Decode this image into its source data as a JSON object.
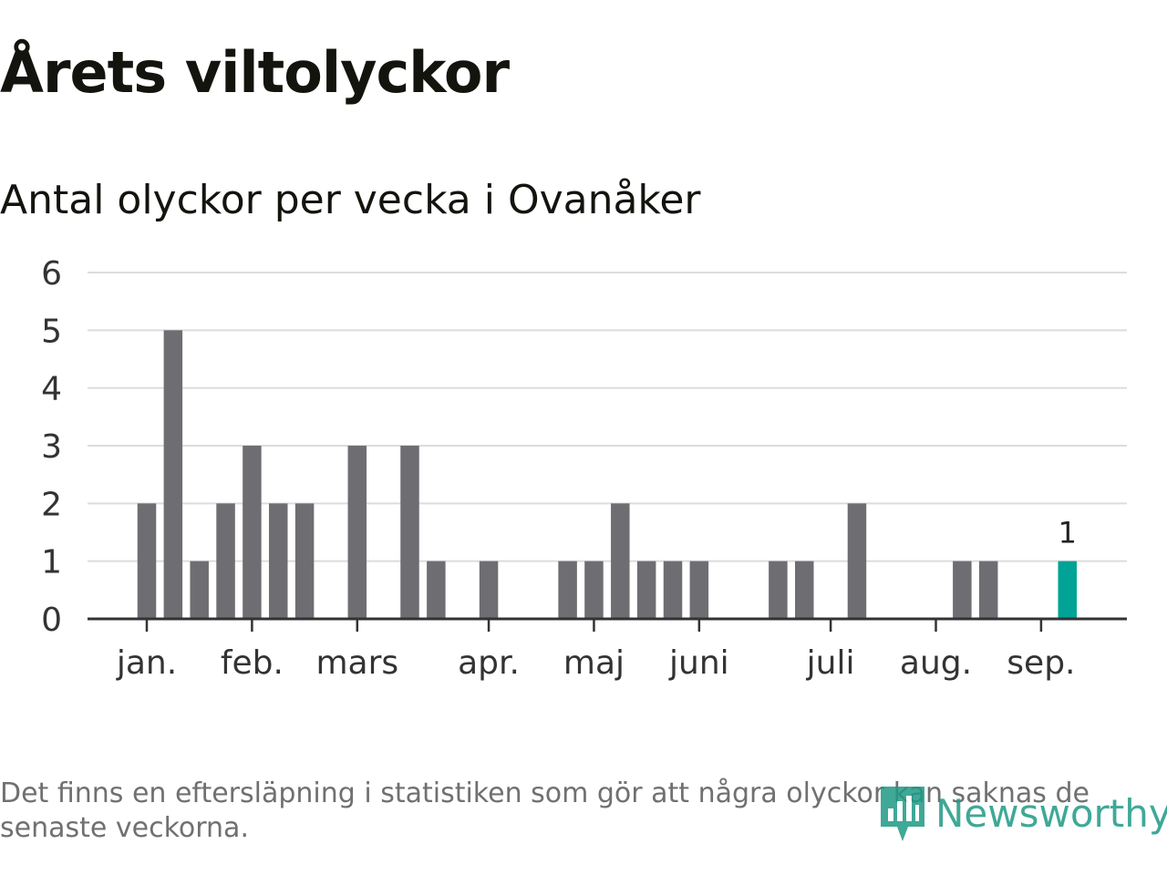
{
  "title": "Årets viltolyckor",
  "subtitle": "Antal olyckor per vecka i Ovanåker",
  "footnote": "Det finns en eftersläpning i statistiken som gör att några olyckor kan saknas de senaste veckorna.",
  "brand": {
    "name": "Newsworthy",
    "icon": "bar-chart-logo-icon",
    "color": "#1f9a85"
  },
  "colors": {
    "bar": "#6e6d72",
    "highlight": "#00a396",
    "grid": "#dcdcdc",
    "axis": "#333333",
    "label": "#333333"
  },
  "chart_data": {
    "type": "bar",
    "x_axis": "week",
    "week_range": [
      1,
      37
    ],
    "values": [
      2,
      5,
      1,
      2,
      3,
      2,
      2,
      0,
      3,
      0,
      3,
      1,
      0,
      1,
      0,
      0,
      1,
      1,
      2,
      1,
      1,
      1,
      0,
      0,
      1,
      1,
      0,
      2,
      0,
      0,
      0,
      1,
      1,
      0,
      0,
      1
    ],
    "highlight_last": true,
    "data_labels": [
      {
        "index": 35,
        "label": "1"
      }
    ],
    "ylim": [
      0,
      6
    ],
    "yticks": [
      0,
      1,
      2,
      3,
      4,
      5,
      6
    ],
    "month_ticks": [
      {
        "label": "jan.",
        "week": 1
      },
      {
        "label": "feb.",
        "week": 5
      },
      {
        "label": "mars",
        "week": 9
      },
      {
        "label": "apr.",
        "week": 14
      },
      {
        "label": "maj",
        "week": 18
      },
      {
        "label": "juni",
        "week": 22
      },
      {
        "label": "juli",
        "week": 27
      },
      {
        "label": "aug.",
        "week": 31
      },
      {
        "label": "sep.",
        "week": 35
      }
    ],
    "grid": true,
    "legend": "none"
  }
}
